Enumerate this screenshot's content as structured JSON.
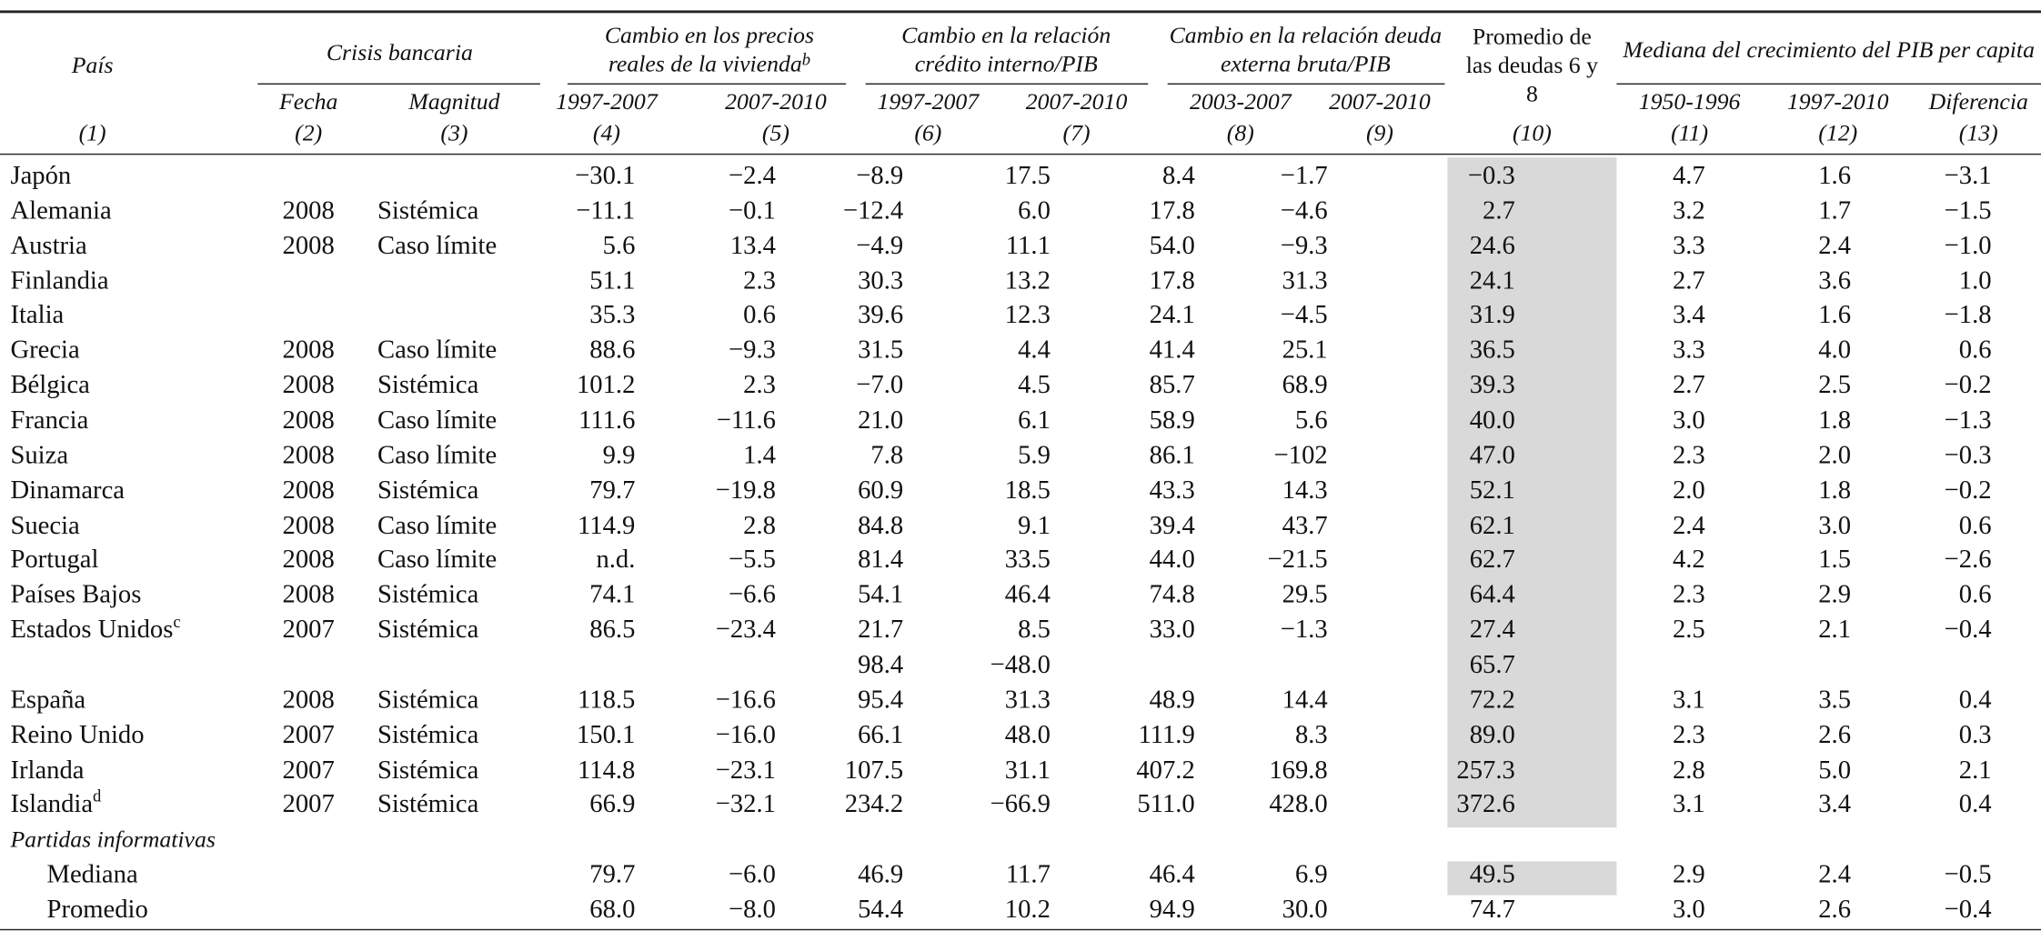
{
  "table": {
    "header": {
      "pais": "País",
      "crisis": "Crisis bancaria",
      "fecha": "Fecha",
      "magnitud": "Magnitud",
      "precios": "Cambio en los precios reales de la vivienda",
      "precios_note": "b",
      "credito": "Cambio en la relación crédito interno/PIB",
      "deuda": "Cambio en la relación deuda externa bruta/PIB",
      "promedio": "Promedio de las deudas 6 y 8",
      "mediana": "Mediana del crecimiento del PIB per capita",
      "periods": [
        "1997-2007",
        "2007-2010",
        "1997-2007",
        "2007-2010",
        "2003-2007",
        "2007-2010",
        "1950-1996",
        "1997-2010",
        "Diferencia"
      ],
      "numbers": [
        "(1)",
        "(2)",
        "(3)",
        "(4)",
        "(5)",
        "(6)",
        "(7)",
        "(8)",
        "(9)",
        "(10)",
        "(11)",
        "(12)",
        "(13)"
      ]
    },
    "rows": [
      {
        "country": "Japón",
        "cells": [
          null,
          null,
          "−30.1",
          "−2.4",
          "−8.9",
          "17.5",
          "8.4",
          "−1.7",
          "−0.3",
          "4.7",
          "1.6",
          "−3.1"
        ]
      },
      {
        "country": "Alemania",
        "cells": [
          "2008",
          "Sistémica",
          "−11.1",
          "−0.1",
          "−12.4",
          "6.0",
          "17.8",
          "−4.6",
          "2.7",
          "3.2",
          "1.7",
          "−1.5"
        ]
      },
      {
        "country": "Austria",
        "cells": [
          "2008",
          "Caso límite",
          "5.6",
          "13.4",
          "−4.9",
          "11.1",
          "54.0",
          "−9.3",
          "24.6",
          "3.3",
          "2.4",
          "−1.0"
        ]
      },
      {
        "country": "Finlandia",
        "cells": [
          null,
          null,
          "51.1",
          "2.3",
          "30.3",
          "13.2",
          "17.8",
          "31.3",
          "24.1",
          "2.7",
          "3.6",
          "1.0"
        ]
      },
      {
        "country": "Italia",
        "cells": [
          null,
          null,
          "35.3",
          "0.6",
          "39.6",
          "12.3",
          "24.1",
          "−4.5",
          "31.9",
          "3.4",
          "1.6",
          "−1.8"
        ]
      },
      {
        "country": "Grecia",
        "cells": [
          "2008",
          "Caso límite",
          "88.6",
          "−9.3",
          "31.5",
          "4.4",
          "41.4",
          "25.1",
          "36.5",
          "3.3",
          "4.0",
          "0.6"
        ]
      },
      {
        "country": "Bélgica",
        "cells": [
          "2008",
          "Sistémica",
          "101.2",
          "2.3",
          "−7.0",
          "4.5",
          "85.7",
          "68.9",
          "39.3",
          "2.7",
          "2.5",
          "−0.2"
        ]
      },
      {
        "country": "Francia",
        "cells": [
          "2008",
          "Caso límite",
          "111.6",
          "−11.6",
          "21.0",
          "6.1",
          "58.9",
          "5.6",
          "40.0",
          "3.0",
          "1.8",
          "−1.3"
        ]
      },
      {
        "country": "Suiza",
        "cells": [
          "2008",
          "Caso límite",
          "9.9",
          "1.4",
          "7.8",
          "5.9",
          "86.1",
          "−102",
          "47.0",
          "2.3",
          "2.0",
          "−0.3"
        ]
      },
      {
        "country": "Dinamarca",
        "cells": [
          "2008",
          "Sistémica",
          "79.7",
          "−19.8",
          "60.9",
          "18.5",
          "43.3",
          "14.3",
          "52.1",
          "2.0",
          "1.8",
          "−0.2"
        ]
      },
      {
        "country": "Suecia",
        "cells": [
          "2008",
          "Caso límite",
          "114.9",
          "2.8",
          "84.8",
          "9.1",
          "39.4",
          "43.7",
          "62.1",
          "2.4",
          "3.0",
          "0.6"
        ]
      },
      {
        "country": "Portugal",
        "cells": [
          "2008",
          "Caso límite",
          "n.d.",
          "−5.5",
          "81.4",
          "33.5",
          "44.0",
          "−21.5",
          "62.7",
          "4.2",
          "1.5",
          "−2.6"
        ]
      },
      {
        "country": "Países Bajos",
        "cells": [
          "2008",
          "Sistémica",
          "74.1",
          "−6.6",
          "54.1",
          "46.4",
          "74.8",
          "29.5",
          "64.4",
          "2.3",
          "2.9",
          "0.6"
        ]
      },
      {
        "country": "Estados Unidos",
        "note": "c",
        "cells": [
          "2007",
          "Sistémica",
          "86.5",
          "−23.4",
          "21.7",
          "8.5",
          "33.0",
          "−1.3",
          "27.4",
          "2.5",
          "2.1",
          "−0.4"
        ]
      },
      {
        "country": null,
        "cells": [
          null,
          null,
          null,
          null,
          "98.4",
          "−48.0",
          null,
          null,
          "65.7",
          null,
          null,
          null
        ]
      },
      {
        "country": "España",
        "cells": [
          "2008",
          "Sistémica",
          "118.5",
          "−16.6",
          "95.4",
          "31.3",
          "48.9",
          "14.4",
          "72.2",
          "3.1",
          "3.5",
          "0.4"
        ]
      },
      {
        "country": "Reino Unido",
        "cells": [
          "2007",
          "Sistémica",
          "150.1",
          "−16.0",
          "66.1",
          "48.0",
          "111.9",
          "8.3",
          "89.0",
          "2.3",
          "2.6",
          "0.3"
        ]
      },
      {
        "country": "Irlanda",
        "cells": [
          "2007",
          "Sistémica",
          "114.8",
          "−23.1",
          "107.5",
          "31.1",
          "407.2",
          "169.8",
          "257.3",
          "2.8",
          "5.0",
          "2.1"
        ]
      },
      {
        "country": "Islandia",
        "note": "d",
        "cells": [
          "2007",
          "Sistémica",
          "66.9",
          "−32.1",
          "234.2",
          "−66.9",
          "511.0",
          "428.0",
          "372.6",
          "3.1",
          "3.4",
          "0.4"
        ]
      }
    ],
    "memo": {
      "title": "Partidas informativas",
      "rows": [
        {
          "country": "Mediana",
          "cells": [
            "79.7",
            "−6.0",
            "46.9",
            "11.7",
            "46.4",
            "6.9",
            "49.5",
            "2.9",
            "2.4",
            "−0.5"
          ]
        },
        {
          "country": "Promedio",
          "cells": [
            "68.0",
            "−8.0",
            "54.4",
            "10.2",
            "94.9",
            "30.0",
            "74.7",
            "3.0",
            "2.6",
            "−0.4"
          ]
        }
      ]
    }
  }
}
